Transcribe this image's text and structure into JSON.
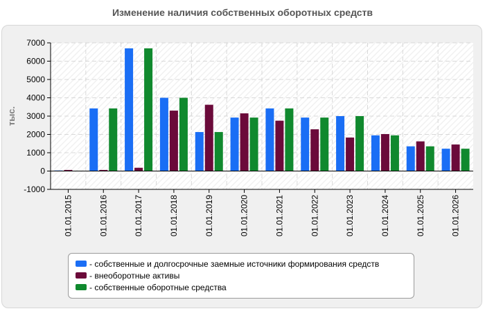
{
  "title": "Изменение наличия собственных оборотных средств",
  "chart_data": {
    "type": "bar",
    "ylabel": "тыс.",
    "ylim": [
      -1000,
      7000
    ],
    "yticks": [
      7000,
      6000,
      5000,
      4000,
      3000,
      2000,
      1000,
      0,
      -1000
    ],
    "categories": [
      "01.01.2015",
      "01.01.2016",
      "01.01.2017",
      "01.01.2018",
      "01.01.2019",
      "01.01.2020",
      "01.01.2021",
      "01.01.2022",
      "01.01.2023",
      "01.01.2024",
      "01.01.2025",
      "01.01.2026"
    ],
    "series": [
      {
        "name": "- собственные и долгосрочные заемные источники формирования средств",
        "color": "#1a6ef5",
        "values": [
          30,
          3420,
          6700,
          4000,
          2130,
          2920,
          3420,
          2920,
          3000,
          1950,
          1350,
          1220
        ]
      },
      {
        "name": "- внеоборотные активы",
        "color": "#6b0a3a",
        "values": [
          60,
          60,
          180,
          3300,
          3620,
          3150,
          2750,
          2280,
          1830,
          2020,
          1620,
          1450
        ]
      },
      {
        "name": "- собственные оборотные средства",
        "color": "#10892e",
        "values": [
          20,
          3420,
          6700,
          4000,
          2130,
          2920,
          3420,
          2920,
          3000,
          1950,
          1350,
          1220
        ]
      }
    ],
    "grid": true,
    "legend_position": "bottom"
  }
}
